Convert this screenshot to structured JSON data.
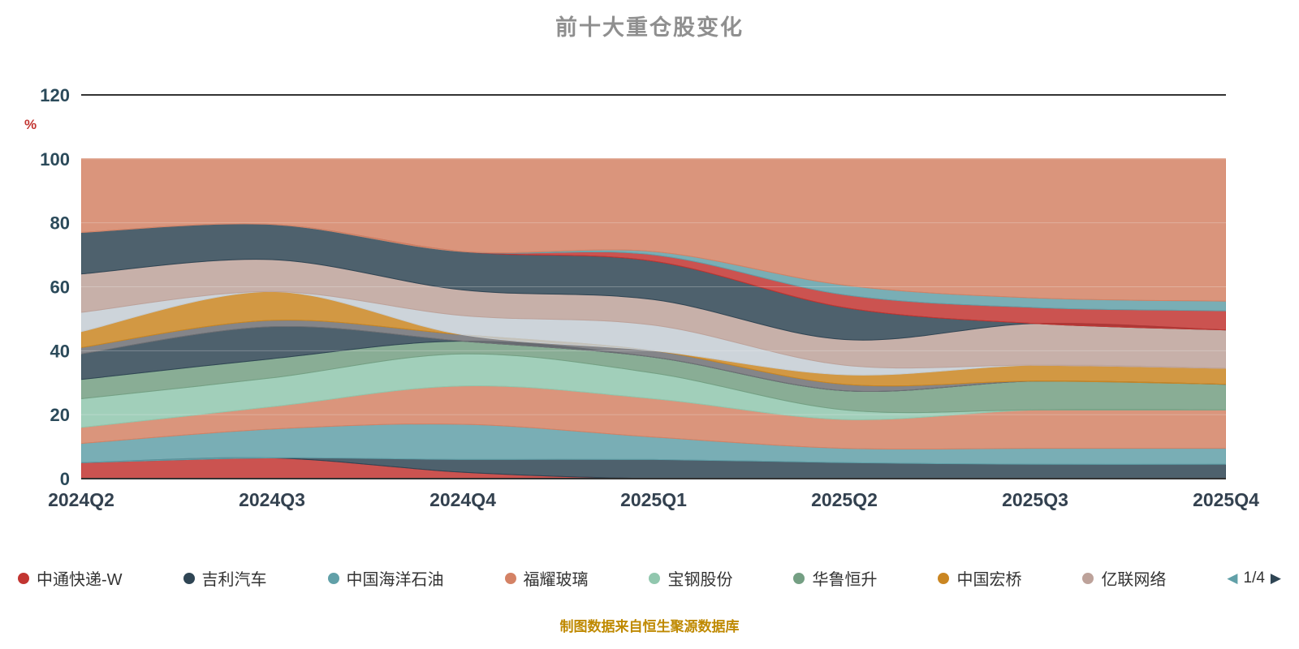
{
  "title": "前十大重仓股变化",
  "caption": "制图数据来自恒生聚源数据库",
  "legend": {
    "page": "1/4",
    "items": [
      {
        "label": "中通快递-W",
        "color": "#c23531"
      },
      {
        "label": "吉利汽车",
        "color": "#2f4554"
      },
      {
        "label": "中国海洋石油",
        "color": "#61a0a8"
      },
      {
        "label": "福耀玻璃",
        "color": "#d48265"
      },
      {
        "label": "宝钢股份",
        "color": "#91c7ae"
      },
      {
        "label": "华鲁恒升",
        "color": "#749f83"
      },
      {
        "label": "中国宏桥",
        "color": "#ca8622"
      },
      {
        "label": "亿联网络",
        "color": "#bda29a"
      }
    ]
  },
  "colors": {
    "title": "#8f8f8f",
    "caption": "#bf8900",
    "y_axis_label": "#2b4a5a",
    "x_axis_label": "#33414f",
    "percent": "#c23531",
    "axis_line": "#333333",
    "gridline": "#e0e0e0"
  },
  "chart_data": {
    "type": "area",
    "stacked": true,
    "title": "前十大重仓股变化",
    "y_axis_name": "%",
    "ylim": [
      0,
      120
    ],
    "y_ticks": [
      0,
      20,
      40,
      60,
      80,
      100,
      120
    ],
    "grid": true,
    "legend_position": "bottom",
    "x_categories": [
      "2024Q2",
      "2024Q3",
      "2024Q4",
      "2025Q1",
      "2025Q2",
      "2025Q3",
      "2025Q4"
    ],
    "series": [
      {
        "name": "中通快递-W",
        "color": "#c23531",
        "values": [
          5,
          6.5,
          2,
          0,
          0,
          0,
          0
        ]
      },
      {
        "name": "吉利汽车",
        "color": "#2f4554",
        "values": [
          0,
          0,
          4,
          6,
          5,
          4.5,
          4.5
        ]
      },
      {
        "name": "中国海洋石油",
        "color": "#61a0a8",
        "values": [
          6,
          9,
          11,
          7,
          4.5,
          5,
          5
        ]
      },
      {
        "name": "福耀玻璃",
        "color": "#d48265",
        "values": [
          5,
          7,
          12,
          12,
          9,
          12,
          12
        ]
      },
      {
        "name": "宝钢股份",
        "color": "#91c7ae",
        "values": [
          9,
          9,
          10,
          8,
          3,
          0,
          0
        ]
      },
      {
        "name": "华鲁恒升",
        "color": "#749f83",
        "values": [
          6,
          6,
          4,
          5,
          6,
          9,
          8
        ]
      },
      {
        "name": "",
        "color": "#2f4554",
        "values": [
          8,
          10,
          0,
          0,
          0,
          0,
          0
        ]
      },
      {
        "name": "",
        "color": "#6e7074",
        "values": [
          2,
          2,
          2,
          2,
          2,
          0,
          0
        ]
      },
      {
        "name": "中国宏桥",
        "color": "#ca8622",
        "values": [
          5,
          9,
          0,
          0,
          3,
          5,
          5
        ]
      },
      {
        "name": "",
        "color": "#c4ccd3",
        "values": [
          6,
          0,
          6,
          8,
          3,
          0,
          0
        ]
      },
      {
        "name": "亿联网络",
        "color": "#bda29a",
        "values": [
          12,
          10,
          8,
          8,
          8,
          13,
          12
        ]
      },
      {
        "name": "",
        "color": "#2f4554",
        "values": [
          13,
          11,
          12,
          12,
          10,
          0,
          0
        ]
      },
      {
        "name": "",
        "color": "#c23531",
        "values": [
          0,
          0,
          0,
          2,
          4,
          5,
          6
        ]
      },
      {
        "name": "",
        "color": "#61a0a8",
        "values": [
          0,
          0,
          0,
          1,
          3,
          3,
          3
        ]
      },
      {
        "name": "",
        "color": "#d48265",
        "values": [
          23,
          20.5,
          29,
          29,
          39.5,
          43.5,
          44.5
        ]
      }
    ]
  }
}
